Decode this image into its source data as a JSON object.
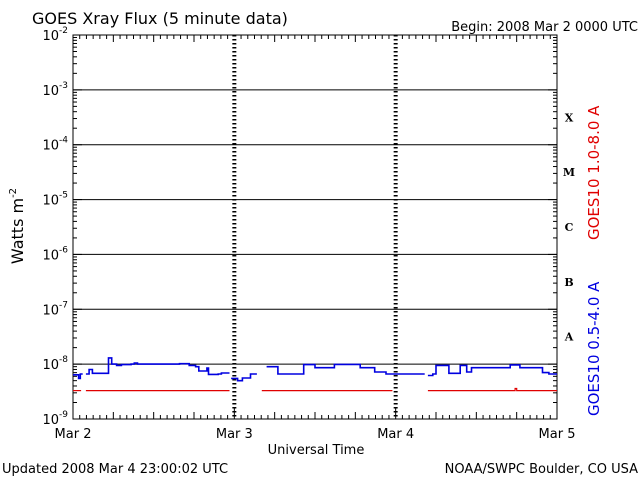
{
  "chart_data": {
    "type": "line",
    "title": "GOES Xray Flux (5 minute data)",
    "begin_label": "Begin:  2008 Mar 2 0000 UTC",
    "xlabel": "Universal Time",
    "ylabel_base": "Watts m",
    "ylabel_exp": "-2",
    "yscale": "log",
    "ylim": [
      1e-09,
      0.01
    ],
    "xlim": [
      0,
      3
    ],
    "x_ticks": [
      {
        "x": 0,
        "label": "Mar 2"
      },
      {
        "x": 1,
        "label": "Mar 3"
      },
      {
        "x": 2,
        "label": "Mar 4"
      },
      {
        "x": 3,
        "label": "Mar 5"
      }
    ],
    "y_ticks": [
      {
        "exp": -2,
        "base": "10",
        "sup": "-2"
      },
      {
        "exp": -3,
        "base": "10",
        "sup": "-3"
      },
      {
        "exp": -4,
        "base": "10",
        "sup": "-4"
      },
      {
        "exp": -5,
        "base": "10",
        "sup": "-5"
      },
      {
        "exp": -6,
        "base": "10",
        "sup": "-6"
      },
      {
        "exp": -7,
        "base": "10",
        "sup": "-7"
      },
      {
        "exp": -8,
        "base": "10",
        "sup": "-8"
      },
      {
        "exp": -9,
        "base": "10",
        "sup": "-9"
      }
    ],
    "flare_classes": [
      {
        "label": "X",
        "exp": -3.5
      },
      {
        "label": "M",
        "exp": -4.5
      },
      {
        "label": "C",
        "exp": -5.5
      },
      {
        "label": "B",
        "exp": -6.5
      },
      {
        "label": "A",
        "exp": -7.5
      }
    ],
    "series": [
      {
        "name": "GOES10 1.0-8.0 A",
        "color": "#e00000",
        "segments": [
          [
            [
              0.0,
              3.3e-09
            ],
            [
              0.05,
              3.3e-09
            ]
          ],
          [
            [
              0.08,
              3.3e-09
            ],
            [
              0.97,
              3.3e-09
            ]
          ],
          [
            [
              1.17,
              3.3e-09
            ],
            [
              1.98,
              3.3e-09
            ]
          ],
          [
            [
              2.2,
              3.3e-09
            ],
            [
              2.73,
              3.3e-09
            ],
            [
              2.74,
              3.6e-09
            ],
            [
              2.75,
              3.3e-09
            ],
            [
              3.0,
              3.3e-09
            ]
          ]
        ]
      },
      {
        "name": "GOES10 0.5-4.0 A",
        "color": "#0000e0",
        "segments": [
          [
            [
              0.0,
              6.4e-09
            ],
            [
              0.03,
              6.4e-09
            ],
            [
              0.035,
              5.5e-09
            ],
            [
              0.04,
              5.5e-09
            ],
            [
              0.045,
              6.6e-09
            ],
            [
              0.06,
              6.6e-09
            ]
          ],
          [
            [
              0.08,
              6.6e-09
            ],
            [
              0.1,
              8e-09
            ],
            [
              0.12,
              6.8e-09
            ],
            [
              0.2,
              6.8e-09
            ],
            [
              0.22,
              1.3e-08
            ],
            [
              0.24,
              1e-08
            ],
            [
              0.27,
              9.5e-09
            ],
            [
              0.3,
              9.8e-09
            ],
            [
              0.36,
              1e-08
            ],
            [
              0.38,
              1.05e-08
            ],
            [
              0.4,
              1e-08
            ],
            [
              0.6,
              1e-08
            ],
            [
              0.66,
              1.02e-08
            ],
            [
              0.72,
              9.5e-09
            ],
            [
              0.76,
              9e-09
            ],
            [
              0.78,
              7.5e-09
            ],
            [
              0.8,
              7.5e-09
            ],
            [
              0.83,
              8.5e-09
            ],
            [
              0.84,
              6.5e-09
            ],
            [
              0.88,
              6.5e-09
            ],
            [
              0.9,
              6.6e-09
            ],
            [
              0.92,
              6.9e-09
            ],
            [
              0.97,
              6.9e-09
            ]
          ],
          [
            [
              0.98,
              5.5e-09
            ],
            [
              1.02,
              5e-09
            ],
            [
              1.05,
              5.6e-09
            ],
            [
              1.1,
              6.6e-09
            ],
            [
              1.14,
              6.6e-09
            ]
          ],
          [
            [
              1.2,
              9e-09
            ],
            [
              1.25,
              9e-09
            ],
            [
              1.27,
              6.6e-09
            ],
            [
              1.39,
              6.6e-09
            ],
            [
              1.43,
              9.8e-09
            ],
            [
              1.47,
              9.8e-09
            ],
            [
              1.5,
              8.6e-09
            ],
            [
              1.6,
              8.6e-09
            ],
            [
              1.62,
              9.9e-09
            ],
            [
              1.74,
              9.9e-09
            ],
            [
              1.78,
              8.6e-09
            ],
            [
              1.84,
              8.6e-09
            ],
            [
              1.87,
              7.2e-09
            ],
            [
              1.91,
              7.2e-09
            ],
            [
              1.94,
              6.6e-09
            ],
            [
              2.18,
              6.6e-09
            ]
          ],
          [
            [
              2.2,
              6.2e-09
            ],
            [
              2.23,
              6.6e-09
            ],
            [
              2.25,
              9.5e-09
            ],
            [
              2.3,
              9.5e-09
            ],
            [
              2.33,
              6.8e-09
            ],
            [
              2.37,
              6.8e-09
            ],
            [
              2.4,
              9.5e-09
            ],
            [
              2.44,
              7.2e-09
            ],
            [
              2.47,
              8.6e-09
            ],
            [
              2.68,
              8.6e-09
            ],
            [
              2.71,
              9.7e-09
            ],
            [
              2.74,
              9.7e-09
            ],
            [
              2.77,
              8.6e-09
            ],
            [
              2.88,
              8.6e-09
            ],
            [
              2.91,
              7e-09
            ],
            [
              2.95,
              6.6e-09
            ],
            [
              3.0,
              6.6e-09
            ]
          ]
        ]
      }
    ]
  },
  "footer": {
    "updated": "Updated 2008 Mar  4 23:00:02 UTC",
    "credit": "NOAA/SWPC Boulder, CO USA"
  }
}
